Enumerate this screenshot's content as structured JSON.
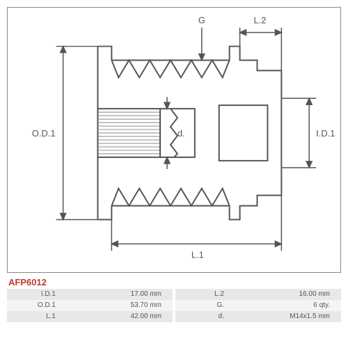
{
  "part_number": "AFP6012",
  "diagram": {
    "labels": {
      "G": "G",
      "L2": "L.2",
      "OD1": "O.D.1",
      "d": "d.",
      "ID1": "I.D.1",
      "L1": "L.1"
    },
    "colors": {
      "stroke": "#555555",
      "hatch": "#888888",
      "bg": "#ffffff",
      "dim": "#555555"
    },
    "fontsize": 13
  },
  "specs_left": [
    {
      "label": "I.D.1",
      "value": "17.00 mm"
    },
    {
      "label": "O.D.1",
      "value": "53.70 mm"
    },
    {
      "label": "L.1",
      "value": "42.00 mm"
    }
  ],
  "specs_right": [
    {
      "label": "L.2",
      "value": "16.00 mm"
    },
    {
      "label": "G.",
      "value": "6 qty."
    },
    {
      "label": "d.",
      "value": "M14x1.5 mm"
    }
  ]
}
